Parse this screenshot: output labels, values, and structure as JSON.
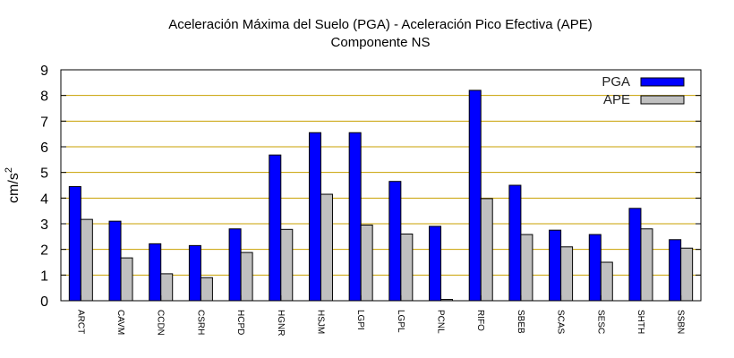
{
  "chart_data": {
    "type": "bar",
    "title": "Aceleración Máxima del Suelo (PGA) -  Aceleración Pico Efectiva (APE)",
    "subtitle": "Componente NS",
    "xlabel": "",
    "ylabel": "cm/s",
    "ylabel_superscript": "2",
    "ylim": [
      0,
      9
    ],
    "yticks": [
      0,
      1,
      2,
      3,
      4,
      5,
      6,
      7,
      8,
      9
    ],
    "grid": "horizontal",
    "legend_position": "top-right",
    "categories": [
      "ARCT",
      "CAVM",
      "CCDN",
      "CSRH",
      "HCPD",
      "HGNR",
      "HSJM",
      "LGPI",
      "LGPL",
      "PCNL",
      "RIFO",
      "SBEB",
      "SCAS",
      "SESC",
      "SHTH",
      "SSBN"
    ],
    "series": [
      {
        "name": "PGA",
        "color": "#0000ff",
        "values": [
          4.45,
          3.1,
          2.22,
          2.15,
          2.8,
          5.68,
          6.55,
          6.55,
          4.65,
          2.9,
          8.2,
          4.5,
          2.75,
          2.58,
          3.6,
          2.38
        ]
      },
      {
        "name": "APE",
        "color": "#c0c0c0",
        "values": [
          3.17,
          1.67,
          1.05,
          0.9,
          1.88,
          2.78,
          4.15,
          2.95,
          2.6,
          0.05,
          3.98,
          2.58,
          2.1,
          1.5,
          2.8,
          2.05
        ]
      }
    ]
  },
  "colors": {
    "grid": "#c8a000",
    "axis": "#000000",
    "bar_stroke": "#000000"
  }
}
